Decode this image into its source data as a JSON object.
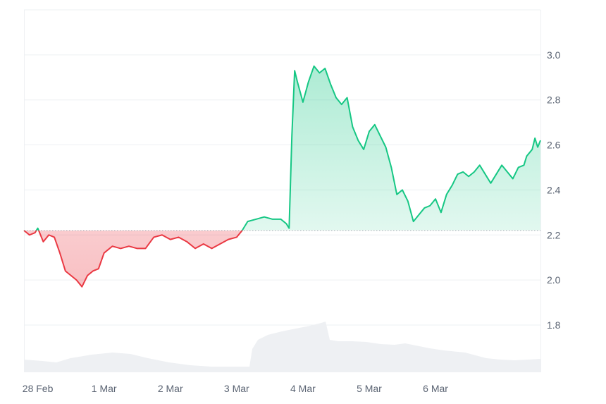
{
  "chart_data": {
    "type": "area",
    "title": "",
    "xlabel": "",
    "ylabel": "",
    "x_ticks": [
      "28 Feb",
      "1 Mar",
      "2 Mar",
      "3 Mar",
      "4 Mar",
      "5 Mar",
      "6 Mar"
    ],
    "y_ticks": [
      1.8,
      2.0,
      2.2,
      2.4,
      2.6,
      2.8,
      3.0
    ],
    "ylim": [
      1.59,
      3.2
    ],
    "xlim": [
      "2024-02-27T19:00",
      "2024-03-06T14:00"
    ],
    "grid": true,
    "baseline": 2.22,
    "colors": {
      "up": "#16c784",
      "down": "#ea3943",
      "volume": "#eef0f3",
      "grid": "#eef0f3",
      "baseline": "#a5abb5"
    },
    "series": [
      {
        "values": [
          [
            "2024-02-27T19:00",
            2.22
          ],
          [
            "2024-02-27T21:00",
            2.2
          ],
          [
            "2024-02-27T23:00",
            2.21
          ],
          [
            "2024-02-28T00:00",
            2.23
          ],
          [
            "2024-02-28T02:00",
            2.17
          ],
          [
            "2024-02-28T04:00",
            2.2
          ],
          [
            "2024-02-28T06:00",
            2.19
          ],
          [
            "2024-02-28T08:00",
            2.12
          ],
          [
            "2024-02-28T10:00",
            2.04
          ],
          [
            "2024-02-28T12:00",
            2.02
          ],
          [
            "2024-02-28T14:00",
            2.0
          ],
          [
            "2024-02-28T16:00",
            1.97
          ],
          [
            "2024-02-28T18:00",
            2.02
          ],
          [
            "2024-02-28T20:00",
            2.04
          ],
          [
            "2024-02-28T22:00",
            2.05
          ],
          [
            "2024-02-29T00:00",
            2.12
          ],
          [
            "2024-02-29T03:00",
            2.15
          ],
          [
            "2024-02-29T06:00",
            2.14
          ],
          [
            "2024-02-29T09:00",
            2.15
          ],
          [
            "2024-02-29T12:00",
            2.14
          ],
          [
            "2024-02-29T15:00",
            2.14
          ],
          [
            "2024-02-29T18:00",
            2.19
          ],
          [
            "2024-02-29T21:00",
            2.2
          ],
          [
            "2024-03-01T00:00",
            2.18
          ],
          [
            "2024-03-01T03:00",
            2.19
          ],
          [
            "2024-03-01T06:00",
            2.17
          ],
          [
            "2024-03-01T09:00",
            2.14
          ],
          [
            "2024-03-01T12:00",
            2.16
          ],
          [
            "2024-03-01T15:00",
            2.14
          ],
          [
            "2024-03-01T18:00",
            2.16
          ],
          [
            "2024-03-01T21:00",
            2.18
          ],
          [
            "2024-03-02T00:00",
            2.19
          ],
          [
            "2024-03-02T02:00",
            2.22
          ],
          [
            "2024-03-02T04:00",
            2.26
          ],
          [
            "2024-03-02T07:00",
            2.27
          ],
          [
            "2024-03-02T10:00",
            2.28
          ],
          [
            "2024-03-02T13:00",
            2.27
          ],
          [
            "2024-03-02T16:00",
            2.27
          ],
          [
            "2024-03-02T18:00",
            2.25
          ],
          [
            "2024-03-02T19:00",
            2.23
          ],
          [
            "2024-03-02T20:00",
            2.64
          ],
          [
            "2024-03-02T21:00",
            2.93
          ],
          [
            "2024-03-02T22:00",
            2.88
          ],
          [
            "2024-03-03T00:00",
            2.79
          ],
          [
            "2024-03-03T02:00",
            2.88
          ],
          [
            "2024-03-03T04:00",
            2.95
          ],
          [
            "2024-03-03T06:00",
            2.92
          ],
          [
            "2024-03-03T08:00",
            2.94
          ],
          [
            "2024-03-03T10:00",
            2.87
          ],
          [
            "2024-03-03T12:00",
            2.81
          ],
          [
            "2024-03-03T14:00",
            2.78
          ],
          [
            "2024-03-03T16:00",
            2.81
          ],
          [
            "2024-03-03T18:00",
            2.68
          ],
          [
            "2024-03-03T20:00",
            2.62
          ],
          [
            "2024-03-03T22:00",
            2.58
          ],
          [
            "2024-03-04T00:00",
            2.66
          ],
          [
            "2024-03-04T02:00",
            2.69
          ],
          [
            "2024-03-04T04:00",
            2.64
          ],
          [
            "2024-03-04T06:00",
            2.59
          ],
          [
            "2024-03-04T08:00",
            2.5
          ],
          [
            "2024-03-04T10:00",
            2.38
          ],
          [
            "2024-03-04T12:00",
            2.4
          ],
          [
            "2024-03-04T14:00",
            2.35
          ],
          [
            "2024-03-04T16:00",
            2.26
          ],
          [
            "2024-03-04T18:00",
            2.29
          ],
          [
            "2024-03-04T20:00",
            2.32
          ],
          [
            "2024-03-04T22:00",
            2.33
          ],
          [
            "2024-03-05T00:00",
            2.36
          ],
          [
            "2024-03-05T02:00",
            2.3
          ],
          [
            "2024-03-05T04:00",
            2.38
          ],
          [
            "2024-03-05T06:00",
            2.42
          ],
          [
            "2024-03-05T08:00",
            2.47
          ],
          [
            "2024-03-05T10:00",
            2.48
          ],
          [
            "2024-03-05T12:00",
            2.46
          ],
          [
            "2024-03-05T14:00",
            2.48
          ],
          [
            "2024-03-05T16:00",
            2.51
          ],
          [
            "2024-03-05T18:00",
            2.47
          ],
          [
            "2024-03-05T20:00",
            2.43
          ],
          [
            "2024-03-05T22:00",
            2.47
          ],
          [
            "2024-03-06T00:00",
            2.51
          ],
          [
            "2024-03-06T02:00",
            2.48
          ],
          [
            "2024-03-06T04:00",
            2.45
          ],
          [
            "2024-03-06T06:00",
            2.5
          ],
          [
            "2024-03-06T08:00",
            2.51
          ],
          [
            "2024-03-06T09:00",
            2.55
          ],
          [
            "2024-03-06T11:00",
            2.58
          ],
          [
            "2024-03-06T12:00",
            2.63
          ],
          [
            "2024-03-06T13:00",
            2.59
          ],
          [
            "2024-03-06T14:00",
            2.62
          ]
        ]
      }
    ]
  }
}
